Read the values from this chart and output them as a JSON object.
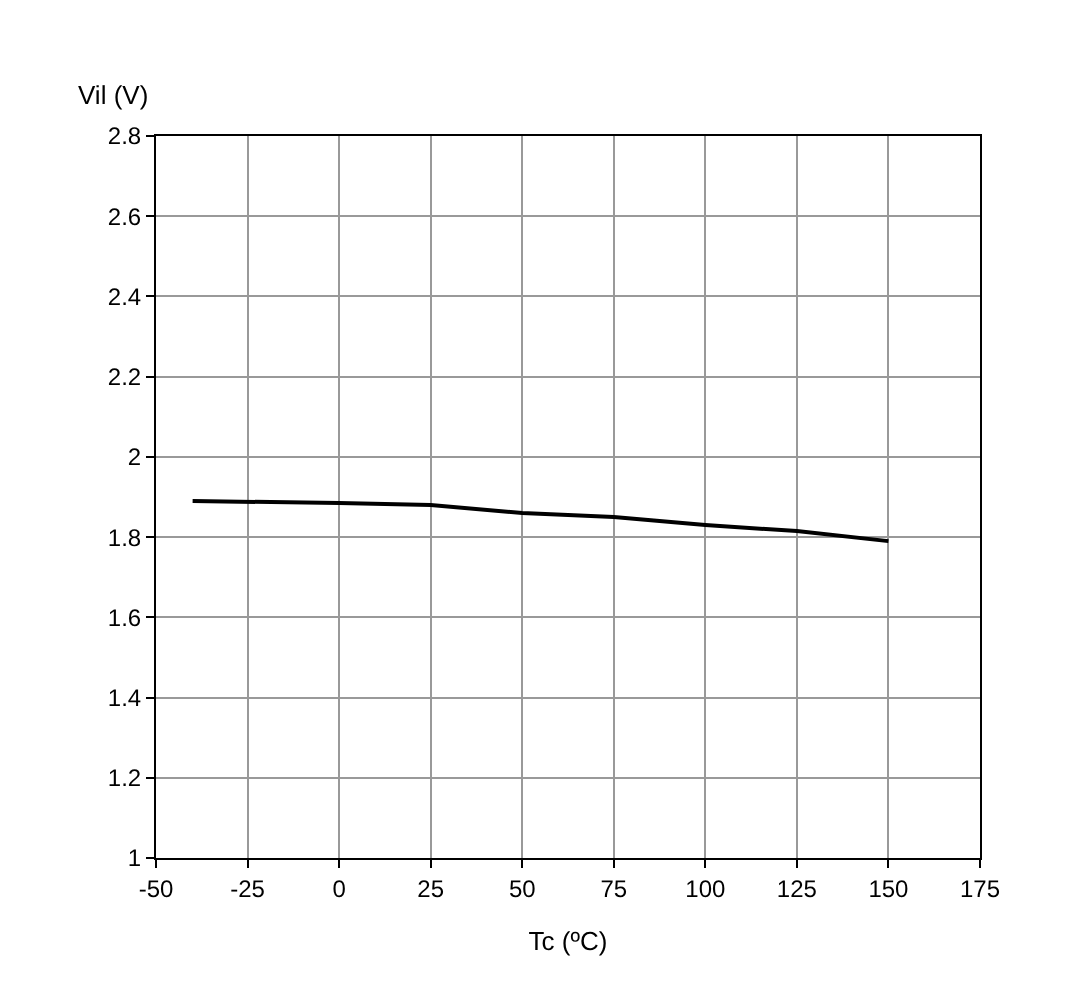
{
  "chart_data": {
    "type": "line",
    "xlabel": "Tc (ºC)",
    "ylabel": "Vil (V)",
    "x": [
      -40,
      0,
      25,
      50,
      75,
      100,
      125,
      150
    ],
    "series": [
      {
        "color": "#000000",
        "values": [
          1.89,
          1.885,
          1.88,
          1.86,
          1.85,
          1.83,
          1.815,
          1.79
        ]
      }
    ],
    "xlim": [
      -50,
      175
    ],
    "xticks": [
      -50,
      -25,
      0,
      25,
      50,
      75,
      100,
      125,
      150,
      175
    ],
    "ylim": [
      1,
      2.8
    ],
    "yticks": [
      1,
      {
        "value": 1.2,
        "label": "1.2"
      },
      {
        "value": 1.4,
        "label": "1.4"
      },
      {
        "value": 1.6,
        "label": "1.6"
      },
      {
        "value": 1.8,
        "label": "1.8"
      },
      2,
      {
        "value": 2.2,
        "label": "2.2"
      },
      {
        "value": 2.4,
        "label": "2.4"
      },
      {
        "value": 2.6,
        "label": "2.6"
      },
      {
        "value": 2.8,
        "label": "2.8"
      }
    ],
    "grid": true,
    "marker": "none",
    "line_style": "solid"
  }
}
